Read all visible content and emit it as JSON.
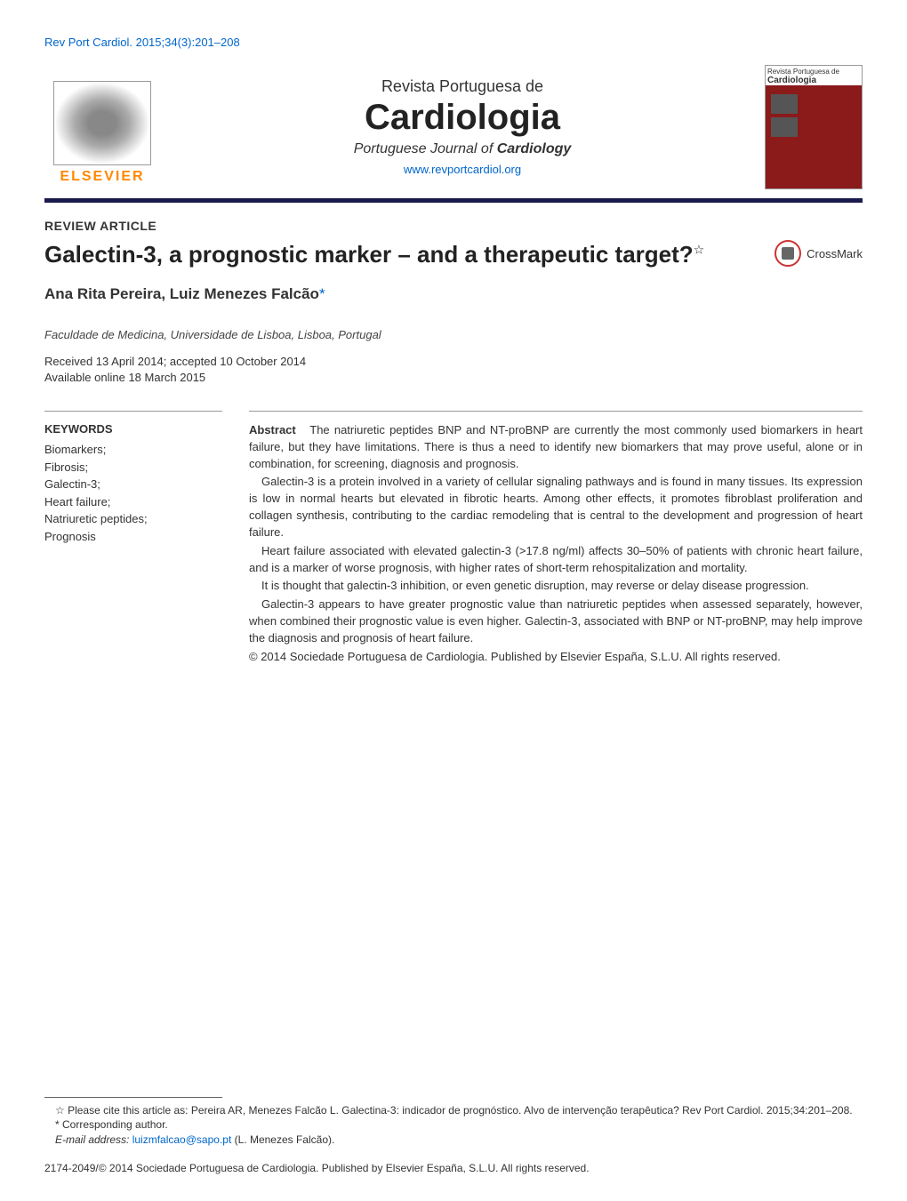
{
  "header": {
    "citation": "Rev Port Cardiol. 2015;34(3):201–208"
  },
  "banner": {
    "publisher_name": "ELSEVIER",
    "journal_subtitle": "Revista Portuguesa de",
    "journal_title": "Cardiologia",
    "journal_english_prefix": "Portuguese Journal of ",
    "journal_english_bold": "Cardiology",
    "journal_url": "www.revportcardiol.org",
    "cover_heading": "Cardiologia"
  },
  "article": {
    "type": "REVIEW ARTICLE",
    "title": "Galectin-3, a prognostic marker – and a therapeutic target?",
    "title_footnote_marker": "☆",
    "authors": "Ana Rita Pereira, Luiz Menezes Falcão",
    "corr_marker": "*",
    "affiliation": "Faculdade de Medicina, Universidade de Lisboa, Lisboa, Portugal",
    "received": "Received 13 April 2014; accepted 10 October 2014",
    "available": "Available online 18 March 2015"
  },
  "crossmark": {
    "label": "CrossMark"
  },
  "keywords": {
    "heading": "KEYWORDS",
    "items": [
      "Biomarkers;",
      "Fibrosis;",
      "Galectin-3;",
      "Heart failure;",
      "Natriuretic peptides;",
      "Prognosis"
    ]
  },
  "abstract": {
    "label": "Abstract",
    "p1": "The natriuretic peptides BNP and NT-proBNP are currently the most commonly used biomarkers in heart failure, but they have limitations. There is thus a need to identify new biomarkers that may prove useful, alone or in combination, for screening, diagnosis and prognosis.",
    "p2": "Galectin-3 is a protein involved in a variety of cellular signaling pathways and is found in many tissues. Its expression is low in normal hearts but elevated in fibrotic hearts. Among other effects, it promotes fibroblast proliferation and collagen synthesis, contributing to the cardiac remodeling that is central to the development and progression of heart failure.",
    "p3": "Heart failure associated with elevated galectin-3 (>17.8 ng/ml) affects 30–50% of patients with chronic heart failure, and is a marker of worse prognosis, with higher rates of short-term rehospitalization and mortality.",
    "p4": "It is thought that galectin-3 inhibition, or even genetic disruption, may reverse or delay disease progression.",
    "p5": "Galectin-3 appears to have greater prognostic value than natriuretic peptides when assessed separately, however, when combined their prognostic value is even higher. Galectin-3, associated with BNP or NT-proBNP, may help improve the diagnosis and prognosis of heart failure.",
    "copyright": "© 2014 Sociedade Portuguesa de Cardiologia. Published by Elsevier España, S.L.U. All rights reserved."
  },
  "footnotes": {
    "cite_as": "☆ Please cite this article as: Pereira AR, Menezes Falcão L. Galectina-3: indicador de prognóstico. Alvo de intervenção terapêutica? Rev Port Cardiol. 2015;34:201–208.",
    "corresponding": "* Corresponding author.",
    "email_label": "E-mail address: ",
    "email": "luizmfalcao@sapo.pt",
    "email_author": " (L. Menezes Falcão)."
  },
  "issn": "2174-2049/© 2014 Sociedade Portuguesa de Cardiologia. Published by Elsevier España, S.L.U. All rights reserved.",
  "colors": {
    "link": "#0066cc",
    "rule": "#1a1a4d",
    "publisher": "#ff8800",
    "cover": "#8b1a1a"
  }
}
